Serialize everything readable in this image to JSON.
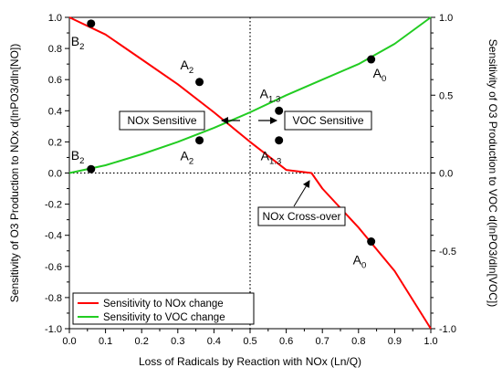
{
  "colors": {
    "nox": "#ff0000",
    "voc": "#22cc22",
    "axis": "#000000",
    "marker": "#000000"
  },
  "chart_data": {
    "type": "line",
    "xlabel": "Loss of Radicals by Reaction with NOx (Ln/Q)",
    "ylabel": "Sensitivity of O3 Production to NOx  d(lnPO3/dln[NO])",
    "y2label": "Sensitivity of O3 Production to VOC  d(lnPO3/dln[VOC])",
    "xlim": [
      0,
      1
    ],
    "ylim": [
      -1,
      1
    ],
    "y2lim": [
      -1,
      1
    ],
    "x_ticks": [
      "0.0",
      "0.1",
      "0.2",
      "0.3",
      "0.4",
      "0.5",
      "0.6",
      "0.7",
      "0.8",
      "0.9",
      "1.0"
    ],
    "y_ticks": [
      "1.0",
      "0.8",
      "0.6",
      "0.4",
      "0.2",
      "0.0",
      "-0.2",
      "-0.4",
      "-0.6",
      "-0.8",
      "-1.0"
    ],
    "y2_ticks": [
      "1.0",
      "0.5",
      "0.0",
      "-0.5",
      "-1.0"
    ],
    "grid": false,
    "legend_position": "bottom-left",
    "series": [
      {
        "name": "Sensitivity to NOx change",
        "axis": "left",
        "x": [
          0,
          0.1,
          0.2,
          0.3,
          0.4,
          0.5,
          0.6,
          0.67,
          0.7,
          0.8,
          0.9,
          1.0
        ],
        "y": [
          1.0,
          0.89,
          0.73,
          0.57,
          0.39,
          0.2,
          0.02,
          0.0,
          -0.1,
          -0.35,
          -0.63,
          -1.0
        ]
      },
      {
        "name": "Sensitivity to VOC change",
        "axis": "right",
        "x": [
          0,
          0.1,
          0.2,
          0.3,
          0.4,
          0.5,
          0.6,
          0.7,
          0.8,
          0.9,
          1.0
        ],
        "y": [
          0.0,
          0.05,
          0.12,
          0.2,
          0.29,
          0.39,
          0.5,
          0.6,
          0.7,
          0.83,
          1.0
        ]
      }
    ],
    "markers": [
      {
        "x": 0.06,
        "y": 0.96,
        "label": "B",
        "sub": "2",
        "pos": "below"
      },
      {
        "x": 0.06,
        "y": 0.025,
        "label": "B",
        "sub": "2",
        "pos": "above"
      },
      {
        "x": 0.36,
        "y": 0.585,
        "label": "A",
        "sub": "2",
        "pos": "above-left"
      },
      {
        "x": 0.36,
        "y": 0.21,
        "label": "A",
        "sub": "2",
        "pos": "below-left"
      },
      {
        "x": 0.58,
        "y": 0.4,
        "label": "A",
        "sub": "1.3",
        "pos": "above-left"
      },
      {
        "x": 0.58,
        "y": 0.21,
        "label": "A",
        "sub": "1.3",
        "pos": "below"
      },
      {
        "x": 0.835,
        "y": 0.73,
        "label": "A",
        "sub": "0",
        "pos": "below-right"
      },
      {
        "x": 0.835,
        "y": -0.44,
        "label": "A",
        "sub": "0",
        "pos": "below"
      }
    ],
    "annotations": {
      "nox_sensitive": "NOx Sensitive",
      "voc_sensitive": "VOC Sensitive",
      "crossover": "NOx Cross-over"
    },
    "reference_lines": {
      "vertical_x": 0.5,
      "horizontal_y": 0.0
    }
  }
}
